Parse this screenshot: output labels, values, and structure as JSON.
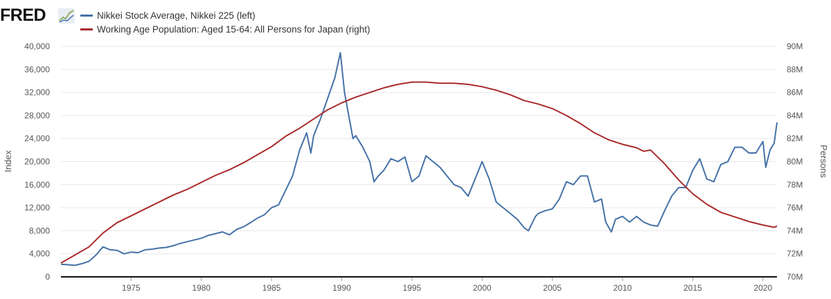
{
  "header": {
    "logo_text": "FRED",
    "logo_icon": "line-chart-icon"
  },
  "colors": {
    "nikkei": "#4572a7",
    "population": "#aa2a2a",
    "grid": "#e6e6e6",
    "axis": "#111111"
  },
  "chart_data": {
    "type": "line",
    "grid": true,
    "legend_position": "top-left",
    "y_left": {
      "label": "Index",
      "range": [
        0,
        40000
      ],
      "ticks": [
        "0",
        "4,000",
        "8,000",
        "12,000",
        "16,000",
        "20,000",
        "24,000",
        "28,000",
        "32,000",
        "36,000",
        "40,000"
      ]
    },
    "y_right": {
      "label": "Persons",
      "range": [
        70,
        90
      ],
      "unit": "M",
      "ticks": [
        "70M",
        "72M",
        "74M",
        "76M",
        "78M",
        "80M",
        "82M",
        "84M",
        "86M",
        "88M",
        "90M"
      ]
    },
    "x_axis": {
      "range": [
        1970,
        2021
      ],
      "ticks": [
        "1975",
        "1980",
        "1985",
        "1990",
        "1995",
        "2000",
        "2005",
        "2010",
        "2015",
        "2020"
      ]
    },
    "series": [
      {
        "name": "Nikkei Stock Average, Nikkei 225 (left)",
        "axis": "left",
        "x": [
          1970.0,
          1970.5,
          1971.0,
          1971.5,
          1972.0,
          1972.5,
          1973.0,
          1973.5,
          1974.0,
          1974.5,
          1975.0,
          1975.5,
          1976.0,
          1976.5,
          1977.0,
          1977.5,
          1978.0,
          1978.5,
          1979.0,
          1979.5,
          1980.0,
          1980.5,
          1981.0,
          1981.5,
          1982.0,
          1982.5,
          1983.0,
          1983.5,
          1984.0,
          1984.5,
          1985.0,
          1985.5,
          1986.0,
          1986.5,
          1987.0,
          1987.5,
          1987.8,
          1988.0,
          1988.5,
          1989.0,
          1989.5,
          1989.9,
          1990.2,
          1990.5,
          1990.8,
          1991.0,
          1991.5,
          1992.0,
          1992.3,
          1992.6,
          1993.0,
          1993.5,
          1994.0,
          1994.5,
          1995.0,
          1995.5,
          1996.0,
          1996.5,
          1997.0,
          1997.5,
          1998.0,
          1998.5,
          1999.0,
          1999.5,
          2000.0,
          2000.5,
          2001.0,
          2001.5,
          2002.0,
          2002.5,
          2003.0,
          2003.3,
          2003.8,
          2004.0,
          2004.5,
          2005.0,
          2005.5,
          2006.0,
          2006.5,
          2007.0,
          2007.5,
          2008.0,
          2008.5,
          2008.8,
          2009.2,
          2009.5,
          2010.0,
          2010.5,
          2011.0,
          2011.5,
          2012.0,
          2012.5,
          2013.0,
          2013.5,
          2014.0,
          2014.5,
          2015.0,
          2015.5,
          2016.0,
          2016.5,
          2017.0,
          2017.5,
          2018.0,
          2018.5,
          2019.0,
          2019.5,
          2020.0,
          2020.2,
          2020.5,
          2020.8,
          2021.0
        ],
        "y": [
          2200,
          2100,
          2000,
          2300,
          2700,
          3800,
          5200,
          4700,
          4600,
          4000,
          4300,
          4200,
          4700,
          4800,
          5000,
          5100,
          5400,
          5800,
          6100,
          6400,
          6700,
          7200,
          7500,
          7800,
          7300,
          8200,
          8700,
          9400,
          10200,
          10800,
          12000,
          12500,
          15000,
          17500,
          22000,
          25000,
          21500,
          24500,
          27500,
          31000,
          34500,
          38900,
          32000,
          28000,
          24000,
          24500,
          22500,
          20000,
          16500,
          17500,
          18500,
          20500,
          20000,
          20800,
          16500,
          17500,
          21000,
          20000,
          19000,
          17500,
          16000,
          15500,
          14000,
          17000,
          20000,
          17000,
          13000,
          12000,
          11000,
          10000,
          8500,
          8000,
          10500,
          11000,
          11500,
          11800,
          13500,
          16500,
          16000,
          17500,
          17500,
          13000,
          13500,
          9500,
          7800,
          10000,
          10500,
          9500,
          10500,
          9500,
          9000,
          8800,
          11500,
          14000,
          15500,
          15500,
          18500,
          20500,
          17000,
          16500,
          19500,
          20000,
          22500,
          22500,
          21500,
          21500,
          23500,
          19000,
          22000,
          23200,
          26800
        ]
      },
      {
        "name": "Working Age Population: Aged 15-64: All Persons for Japan (right)",
        "axis": "right",
        "x": [
          1970.0,
          1971.0,
          1972.0,
          1973.0,
          1974.0,
          1975.0,
          1976.0,
          1977.0,
          1978.0,
          1979.0,
          1980.0,
          1981.0,
          1982.0,
          1983.0,
          1984.0,
          1985.0,
          1986.0,
          1987.0,
          1988.0,
          1989.0,
          1990.0,
          1991.0,
          1992.0,
          1993.0,
          1994.0,
          1995.0,
          1996.0,
          1997.0,
          1998.0,
          1999.0,
          2000.0,
          2001.0,
          2002.0,
          2003.0,
          2004.0,
          2005.0,
          2006.0,
          2007.0,
          2008.0,
          2009.0,
          2010.0,
          2011.0,
          2011.5,
          2012.0,
          2013.0,
          2014.0,
          2015.0,
          2016.0,
          2017.0,
          2018.0,
          2019.0,
          2020.0,
          2020.8,
          2021.0
        ],
        "y": [
          71.2,
          71.9,
          72.6,
          73.8,
          74.7,
          75.3,
          75.9,
          76.5,
          77.1,
          77.6,
          78.2,
          78.8,
          79.3,
          79.9,
          80.6,
          81.3,
          82.2,
          82.9,
          83.7,
          84.5,
          85.1,
          85.6,
          86.0,
          86.4,
          86.7,
          86.9,
          86.9,
          86.8,
          86.8,
          86.7,
          86.5,
          86.2,
          85.8,
          85.3,
          85.0,
          84.6,
          84.0,
          83.3,
          82.5,
          81.9,
          81.5,
          81.2,
          80.9,
          81.0,
          79.8,
          78.4,
          77.2,
          76.3,
          75.6,
          75.2,
          74.8,
          74.5,
          74.3,
          74.4
        ]
      }
    ]
  }
}
